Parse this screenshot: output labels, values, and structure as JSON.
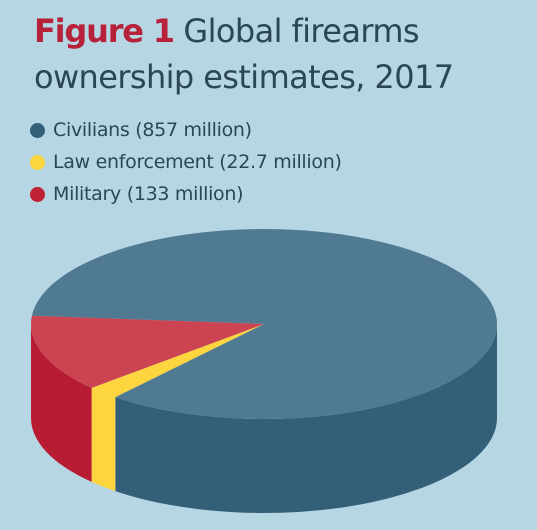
{
  "figure": {
    "label": "Figure 1",
    "title": "Global firearms ownership estimates, 2017"
  },
  "chart_data": {
    "type": "pie",
    "style": "3d",
    "legend_position": "top-left",
    "series": [
      {
        "name": "Civilians",
        "value": 857,
        "legend_label": "Civilians (857 million)",
        "color": "#507a91",
        "side_color": "#335f78",
        "legend_color": "#335f78"
      },
      {
        "name": "Law enforcement",
        "value": 22.7,
        "legend_label": "Law enforcement (22.7 million)",
        "color": "#fdd63f",
        "side_color": "#fdd63f",
        "legend_color": "#fdd63f"
      },
      {
        "name": "Military",
        "value": 133,
        "legend_label": "Military (133 million)",
        "color": "#cc4452",
        "side_color": "#b71c33",
        "legend_color": "#c22036"
      }
    ]
  }
}
